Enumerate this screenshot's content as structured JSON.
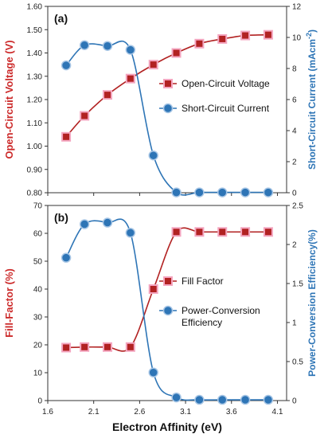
{
  "chart_data": [
    {
      "type": "line",
      "panel_label": "(a)",
      "x": [
        1.8,
        2.0,
        2.25,
        2.5,
        2.75,
        3.0,
        3.25,
        3.5,
        3.75,
        4.0
      ],
      "xlim": [
        1.6,
        4.2
      ],
      "xticks": [
        "1.6",
        "2.1",
        "2.6",
        "3.1",
        "3.6",
        "4.1"
      ],
      "left_axis": {
        "label": "Open-Circuit Voltage (V)",
        "ylim": [
          0.8,
          1.6
        ],
        "ticks": [
          "0.80",
          "0.90",
          "1.00",
          "1.10",
          "1.20",
          "1.30",
          "1.40",
          "1.50",
          "1.60"
        ],
        "color": "#cc2a2a"
      },
      "right_axis": {
        "label_main": "Short-Circuit Current (mAcm",
        "label_sup": "-2",
        "label_end": ")",
        "ylim": [
          0,
          12
        ],
        "ticks": [
          "0",
          "2",
          "4",
          "6",
          "8",
          "10",
          "12"
        ],
        "color": "#2e75b6"
      },
      "series": [
        {
          "name": "Open-Circuit Voltage",
          "axis": "left",
          "marker": "square",
          "color": "#b22222",
          "values": [
            1.04,
            1.13,
            1.22,
            1.29,
            1.35,
            1.4,
            1.44,
            1.46,
            1.475,
            1.478
          ]
        },
        {
          "name": "Short-Circuit Current",
          "axis": "right",
          "marker": "circle",
          "color": "#2e75b6",
          "values": [
            8.2,
            9.5,
            9.45,
            9.2,
            2.4,
            0.02,
            0.02,
            0.02,
            0.02,
            0.02
          ]
        }
      ],
      "legend": "center-right"
    },
    {
      "type": "line",
      "panel_label": "(b)",
      "x": [
        1.8,
        2.0,
        2.25,
        2.5,
        2.75,
        3.0,
        3.25,
        3.5,
        3.75,
        4.0
      ],
      "xlim": [
        1.6,
        4.2
      ],
      "xticks": [
        "1.6",
        "2.1",
        "2.6",
        "3.1",
        "3.6",
        "4.1"
      ],
      "xlabel": "Electron Affinity (eV)",
      "left_axis": {
        "label": "Fill-Factor (%)",
        "ylim": [
          0,
          70
        ],
        "ticks": [
          "0",
          "10",
          "20",
          "30",
          "40",
          "50",
          "60",
          "70"
        ],
        "color": "#cc2a2a"
      },
      "right_axis": {
        "label_main": "Power-Conversion Efficiency(%)",
        "label_sup": "",
        "label_end": "",
        "ylim": [
          0,
          2.5
        ],
        "ticks": [
          "0",
          "0.5",
          "1",
          "1.5",
          "2",
          "2.5"
        ],
        "color": "#2e75b6"
      },
      "series": [
        {
          "name": "Fill Factor",
          "axis": "left",
          "marker": "square",
          "color": "#b22222",
          "values": [
            19.0,
            19.2,
            19.2,
            19.2,
            40.0,
            60.5,
            60.5,
            60.5,
            60.5,
            60.5
          ]
        },
        {
          "name": "Power-Conversion Efficiency",
          "name_lines": [
            "Power-Conversion",
            "Efficiency"
          ],
          "axis": "right",
          "marker": "circle",
          "color": "#2e75b6",
          "values": [
            1.83,
            2.26,
            2.28,
            2.15,
            0.36,
            0.04,
            0.01,
            0.01,
            0.01,
            0.01
          ]
        }
      ],
      "legend": "center-right"
    }
  ]
}
